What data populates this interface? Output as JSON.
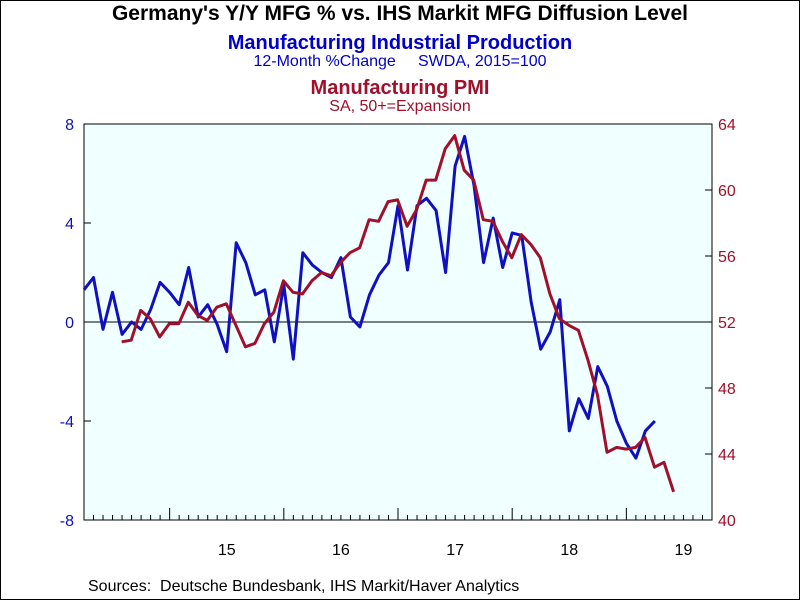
{
  "chart_data": {
    "type": "line",
    "title": "Germany's Y/Y MFG % vs. IHS Markit MFG Diffusion Level",
    "series": [
      {
        "name": "Manufacturing Industrial Production",
        "subtitle": "12-Month %Change     SWDA, 2015=100",
        "axis": "left",
        "color": "#1010c0",
        "start": 2014.25,
        "step": 0.0833333,
        "values": [
          1.3,
          1.8,
          -0.3,
          1.2,
          -0.5,
          0.0,
          -0.3,
          0.5,
          1.6,
          1.2,
          0.7,
          2.2,
          0.2,
          0.7,
          -0.1,
          -1.2,
          3.2,
          2.4,
          1.1,
          1.3,
          -0.8,
          1.5,
          -1.5,
          2.8,
          2.3,
          2.0,
          1.8,
          2.6,
          0.2,
          -0.2,
          1.1,
          1.9,
          2.4,
          4.7,
          2.1,
          4.7,
          5.0,
          4.5,
          2.0,
          6.3,
          7.5,
          5.5,
          2.4,
          4.2,
          2.2,
          3.6,
          3.5,
          0.8,
          -1.1,
          -0.4,
          0.9,
          -4.4,
          -3.1,
          -3.9,
          -1.8,
          -2.6,
          -4.0,
          -4.9,
          -5.5,
          -4.4,
          -4.0
        ]
      },
      {
        "name": "Manufacturing PMI",
        "subtitle": "SA, 50+=Expansion",
        "axis": "right",
        "color": "#a0102a",
        "start": 2014.58,
        "step": 0.0833333,
        "values": [
          50.8,
          50.9,
          52.7,
          52.2,
          51.1,
          51.9,
          51.9,
          53.2,
          52.4,
          52.1,
          52.9,
          53.1,
          51.8,
          50.5,
          50.7,
          51.9,
          52.6,
          54.5,
          53.8,
          53.7,
          54.5,
          55.0,
          54.8,
          55.6,
          56.2,
          56.5,
          58.2,
          58.1,
          59.3,
          59.4,
          57.8,
          58.8,
          60.6,
          60.6,
          62.5,
          63.3,
          61.2,
          60.6,
          58.2,
          58.1,
          56.9,
          55.9,
          57.3,
          56.7,
          55.9,
          53.7,
          52.2,
          51.8,
          51.5,
          49.7,
          47.6,
          44.1,
          44.4,
          44.3,
          44.4,
          45.0,
          43.2,
          43.5,
          41.7
        ]
      }
    ],
    "x_ticks": [
      {
        "label": "15",
        "value": 2015.5
      },
      {
        "label": "16",
        "value": 2016.5
      },
      {
        "label": "17",
        "value": 2017.5
      },
      {
        "label": "18",
        "value": 2018.5
      },
      {
        "label": "19",
        "value": 2019.5
      }
    ],
    "xlim": [
      2014.25,
      2019.75
    ],
    "y_left": {
      "lim": [
        -8,
        8
      ],
      "ticks": [
        -8,
        -4,
        0,
        4,
        8
      ],
      "color": "#1010c0"
    },
    "y_right": {
      "lim": [
        40,
        64
      ],
      "ticks": [
        40,
        44,
        48,
        52,
        56,
        60,
        64
      ],
      "color": "#a0102a"
    },
    "plot_background": "#f0ffff",
    "grid": false,
    "zero_line": true
  },
  "texts": {
    "title": "Germany's Y/Y MFG % vs. IHS Markit MFG Diffusion Level",
    "series1_name": "Manufacturing Industrial Production",
    "series1_sub": "12-Month %Change     SWDA, 2015=100",
    "series2_name": "Manufacturing PMI",
    "series2_sub": "SA, 50+=Expansion",
    "source": "Sources:  Deutsche Bundesbank, IHS Markit/Haver Analytics"
  }
}
